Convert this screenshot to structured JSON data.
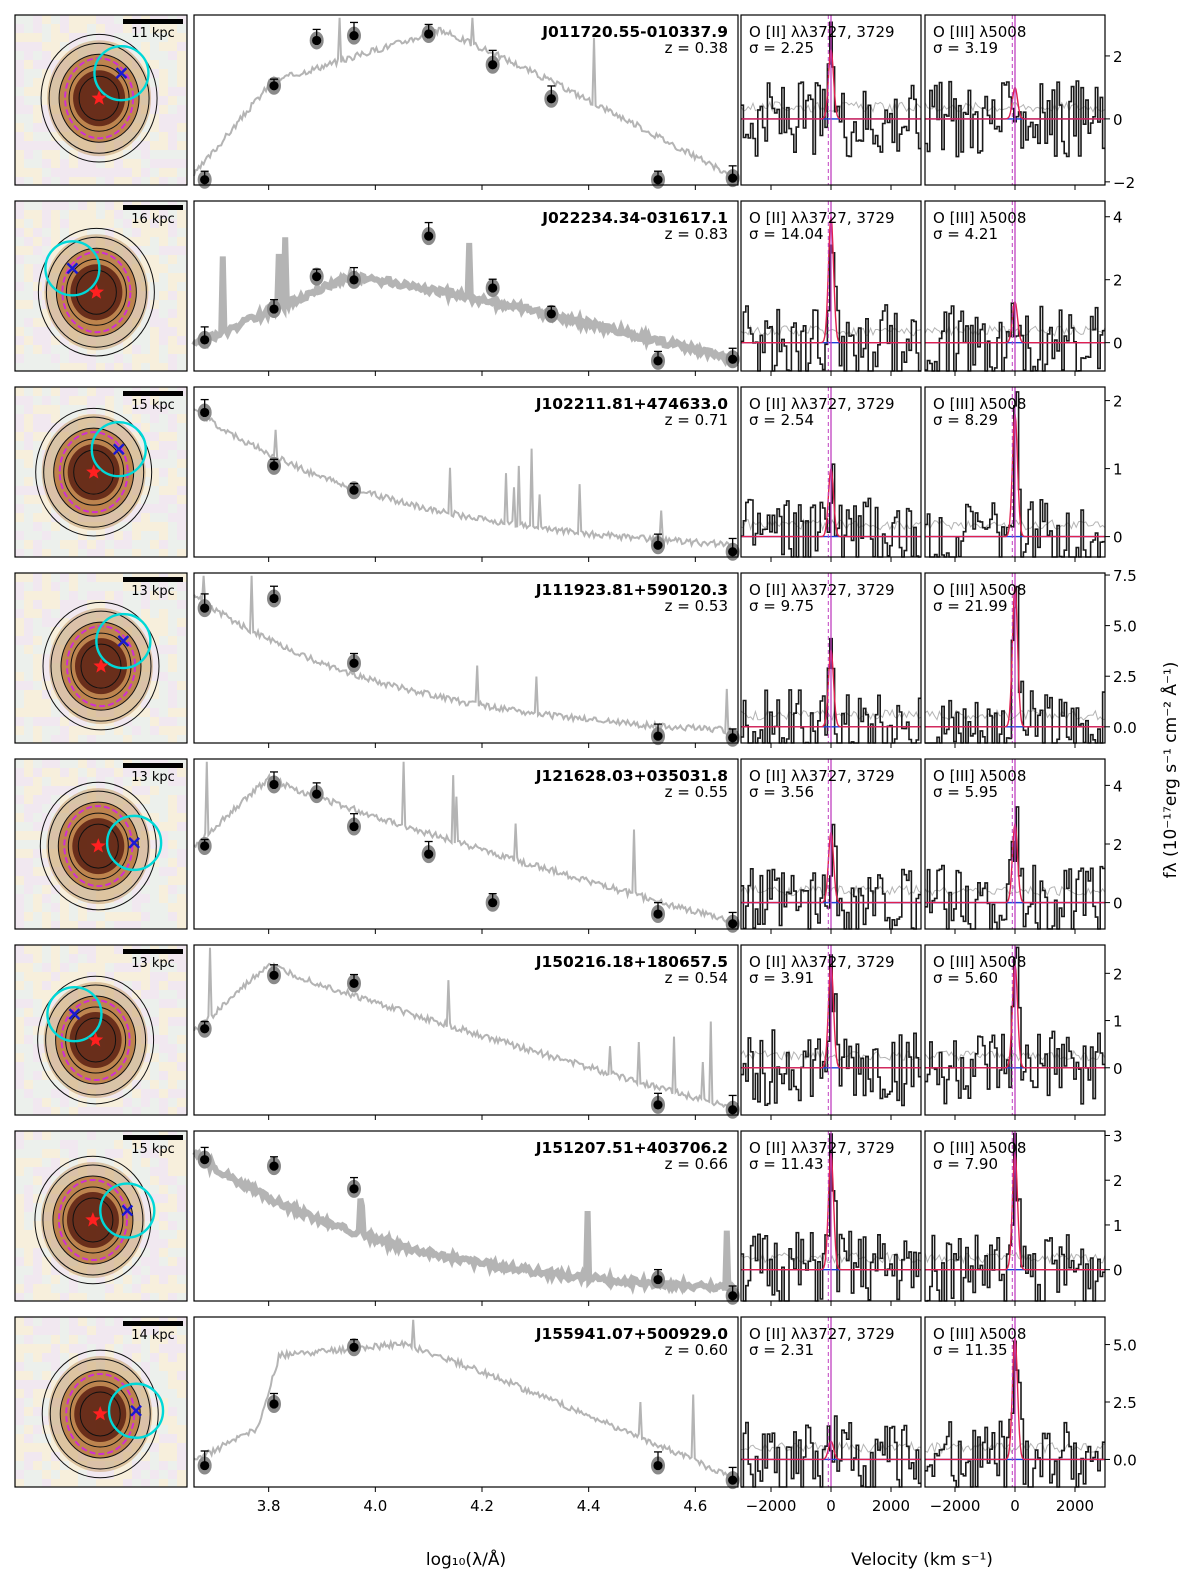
{
  "figure": {
    "x_axis_sed_label": "log₁₀(λ/Å)",
    "x_axis_vel_label": "Velocity (km s⁻¹)",
    "y_axis_label": "fλ (10⁻¹⁷erg s⁻¹ cm⁻² Å⁻¹)",
    "oii_label": "O [II] λλ3727, 3729",
    "oiii_label": "O [III] λ5008",
    "sigma_prefix": "σ = ",
    "z_prefix": "z = "
  },
  "colors": {
    "model_spectrum": "#b4b4b4",
    "photometry_model": "#8a8a8a",
    "photometry_obs": "#000000",
    "line_fit": "#e0204f",
    "zero_line": "#1f3fdc",
    "systemic_line": "#c040c0",
    "aperture_circle": "#00d8d8",
    "cross_marker": "#1a1ad0",
    "star_marker": "#ff2020"
  },
  "chart_data": {
    "type": "line",
    "sed_xlim": [
      3.66,
      4.68
    ],
    "sed_xticks": [
      "3.8",
      "4.0",
      "4.2",
      "4.4",
      "4.6"
    ],
    "vel_xlim": [
      -3000,
      3000
    ],
    "vel_xticks": [
      "−2000",
      "0",
      "2000"
    ],
    "galaxies": [
      {
        "name": "J011720.55-010337.9",
        "z": "0.38",
        "scale": "11 kpc",
        "sigma_oii": "2.25",
        "sigma_oiii": "3.19",
        "ylim": [
          -2.1,
          3.3
        ],
        "yticks": [
          "−2",
          "0",
          "2"
        ],
        "ytick_values": [
          -2,
          0,
          2
        ],
        "sed_shape": "red",
        "phot_x": [
          3.68,
          3.81,
          3.89,
          3.96,
          4.1,
          4.22,
          4.33,
          4.53,
          4.67
        ],
        "phot_y": [
          0.02,
          0.6,
          0.88,
          0.91,
          0.92,
          0.73,
          0.52,
          0.02,
          0.03
        ],
        "oii_peak": 2.2,
        "oiii_peak": 1.0
      },
      {
        "name": "J022234.34-031617.1",
        "z": "0.83",
        "scale": "16 kpc",
        "sigma_oii": "14.04",
        "sigma_oiii": "4.21",
        "ylim": [
          -0.9,
          4.5
        ],
        "yticks": [
          "0",
          "2",
          "4"
        ],
        "ytick_values": [
          0,
          2,
          4
        ],
        "sed_shape": "hump",
        "phot_x": [
          3.68,
          3.81,
          3.89,
          3.96,
          4.1,
          4.22,
          4.33,
          4.53,
          4.67
        ],
        "phot_y": [
          0.18,
          0.37,
          0.57,
          0.55,
          0.82,
          0.5,
          0.34,
          0.05,
          0.06
        ],
        "oii_peak": 4.0,
        "oiii_peak": 1.3
      },
      {
        "name": "J102211.81+474633.0",
        "z": "0.71",
        "scale": "15 kpc",
        "sigma_oii": "2.54",
        "sigma_oiii": "8.29",
        "ylim": [
          -0.3,
          2.2
        ],
        "yticks": [
          "0",
          "1",
          "2"
        ],
        "ytick_values": [
          0,
          1,
          2
        ],
        "sed_shape": "blue",
        "phot_x": [
          3.68,
          3.81,
          3.96,
          4.53,
          4.67
        ],
        "phot_y": [
          0.88,
          0.55,
          0.4,
          0.06,
          0.02
        ],
        "oii_peak": 1.0,
        "oiii_peak": 1.8
      },
      {
        "name": "J111923.81+590120.3",
        "z": "0.53",
        "scale": "13 kpc",
        "sigma_oii": "9.75",
        "sigma_oiii": "21.99",
        "ylim": [
          -0.8,
          7.6
        ],
        "yticks": [
          "0.0",
          "2.5",
          "5.0",
          "7.5"
        ],
        "ytick_values": [
          0,
          2.5,
          5,
          7.5
        ],
        "sed_shape": "blue",
        "phot_x": [
          3.68,
          3.81,
          3.96,
          4.53,
          4.67
        ],
        "phot_y": [
          0.82,
          0.88,
          0.48,
          0.03,
          0.02
        ],
        "oii_peak": 3.8,
        "oiii_peak": 7.0
      },
      {
        "name": "J121628.03+035031.8",
        "z": "0.55",
        "scale": "13 kpc",
        "sigma_oii": "3.56",
        "sigma_oiii": "5.95",
        "ylim": [
          -0.9,
          4.9
        ],
        "yticks": [
          "0",
          "2",
          "4"
        ],
        "ytick_values": [
          0,
          2,
          4
        ],
        "sed_shape": "blue-peaked",
        "phot_x": [
          3.68,
          3.81,
          3.89,
          3.96,
          4.1,
          4.22,
          4.53,
          4.67
        ],
        "phot_y": [
          0.5,
          0.88,
          0.82,
          0.62,
          0.45,
          0.15,
          0.08,
          0.02
        ],
        "oii_peak": 2.4,
        "oiii_peak": 2.7
      },
      {
        "name": "J150216.18+180657.5",
        "z": "0.54",
        "scale": "13 kpc",
        "sigma_oii": "3.91",
        "sigma_oiii": "5.60",
        "ylim": [
          -1.0,
          2.6
        ],
        "yticks": [
          "0",
          "1",
          "2"
        ],
        "ytick_values": [
          0,
          1,
          2
        ],
        "sed_shape": "blue-peaked",
        "phot_x": [
          3.68,
          3.81,
          3.96,
          4.53,
          4.67
        ],
        "phot_y": [
          0.52,
          0.85,
          0.8,
          0.05,
          0.02
        ],
        "oii_peak": 2.2,
        "oiii_peak": 2.2
      },
      {
        "name": "J151207.51+403706.2",
        "z": "0.66",
        "scale": "15 kpc",
        "sigma_oii": "11.43",
        "sigma_oiii": "7.90",
        "ylim": [
          -0.7,
          3.1
        ],
        "yticks": [
          "0",
          "1",
          "2",
          "3"
        ],
        "ytick_values": [
          0,
          1,
          2,
          3
        ],
        "sed_shape": "blue",
        "phot_x": [
          3.68,
          3.81,
          3.96,
          4.53,
          4.67
        ],
        "phot_y": [
          0.86,
          0.82,
          0.68,
          0.12,
          0.02
        ],
        "oii_peak": 2.6,
        "oiii_peak": 2.6
      },
      {
        "name": "J155941.07+500929.0",
        "z": "0.60",
        "scale": "14 kpc",
        "sigma_oii": "2.31",
        "sigma_oiii": "11.35",
        "ylim": [
          -1.2,
          6.2
        ],
        "yticks": [
          "0.0",
          "2.5",
          "5.0"
        ],
        "ytick_values": [
          0,
          2.5,
          5
        ],
        "sed_shape": "red-flat",
        "phot_x": [
          3.68,
          3.81,
          3.96,
          4.53,
          4.67
        ],
        "phot_y": [
          0.12,
          0.5,
          0.85,
          0.12,
          0.03
        ],
        "oii_peak": 0.8,
        "oiii_peak": 5.3
      }
    ]
  }
}
